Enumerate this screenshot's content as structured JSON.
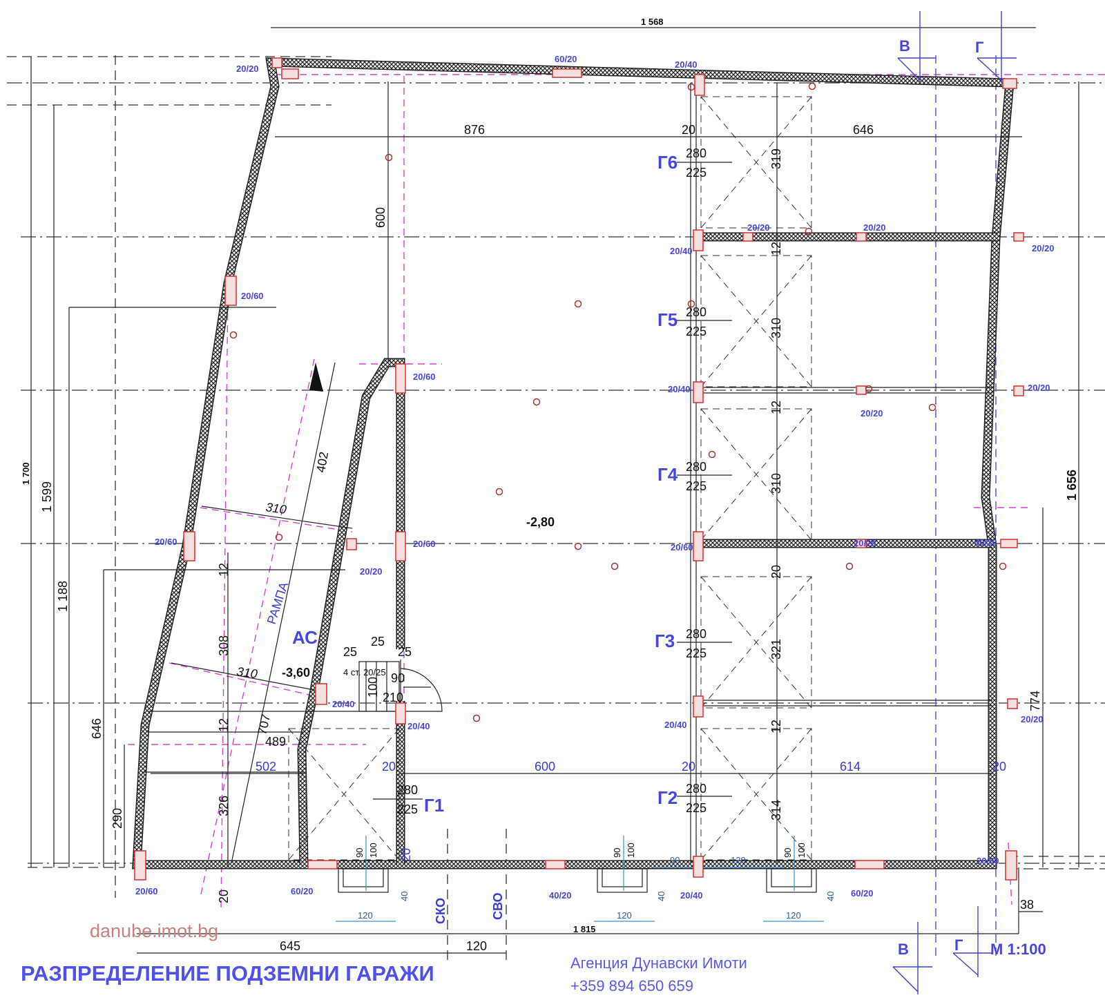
{
  "title": "РАЗПРЕДЕЛЕНИЕ ПОДЗЕМНИ ГАРАЖИ",
  "agency": "Агенция Дунавски Имоти",
  "phone": "+359 894 650 659",
  "scale": "М 1:100",
  "watermark": "danube.imot.bg",
  "levels": {
    "main": "-2,80",
    "ramp": "-3,60"
  },
  "zones": {
    "ramp": "РАМПА",
    "ac": "АС",
    "sko": "СКО",
    "svo": "СВО"
  },
  "garages": [
    "Г1",
    "Г2",
    "Г3",
    "Г4",
    "Г5",
    "Г6"
  ],
  "garage_door": {
    "top": "280",
    "bottom": "225"
  },
  "sections": {
    "v": "В",
    "g": "Г"
  },
  "dims": {
    "overall_top": "1 568",
    "overall_bottom": "1 815",
    "top_left": "876",
    "top_mid": "20",
    "top_right": "646",
    "d600v": "600",
    "g6": "319",
    "g5": "310",
    "g4": "310",
    "g3": "321",
    "g2": "314",
    "t12": "12",
    "t20": "20",
    "h1700": "1 700",
    "h1599": "1 599",
    "h1188": "1 188",
    "h646": "646",
    "h290": "290",
    "r310a": "310",
    "r310b": "310",
    "r402": "402",
    "r707": "707",
    "r489": "489",
    "r308": "308",
    "r326": "326",
    "s25a": "25",
    "s25b": "25",
    "s25c": "25",
    "stairs": "4 ст. 20/25",
    "s100": "100",
    "door90": "90",
    "door210": "210",
    "b645": "645",
    "b120": "120",
    "b38": "38",
    "r774": "774",
    "r1656": "1 656",
    "b20": "20"
  },
  "blue_dims": [
    "502",
    "20",
    "600",
    "20",
    "614",
    "20",
    "20"
  ],
  "small_dims": {
    "w90": "90",
    "w100": "100",
    "w120": "120",
    "w40": "40",
    "h90": "90",
    "h120": "120"
  },
  "column_tags": [
    "20/20",
    "60/20",
    "20/40",
    "20/20",
    "20/20",
    "20/40",
    "20/20",
    "20/60",
    "20/60",
    "20/40",
    "20/20",
    "20/20",
    "20/60",
    "20/60",
    "20/20",
    "20/60",
    "20/20",
    "40/20",
    "20/40",
    "20/40",
    "20/40",
    "20/20",
    "20/60",
    "60/20",
    "40/20",
    "20/40",
    "60/20",
    "20/60"
  ]
}
